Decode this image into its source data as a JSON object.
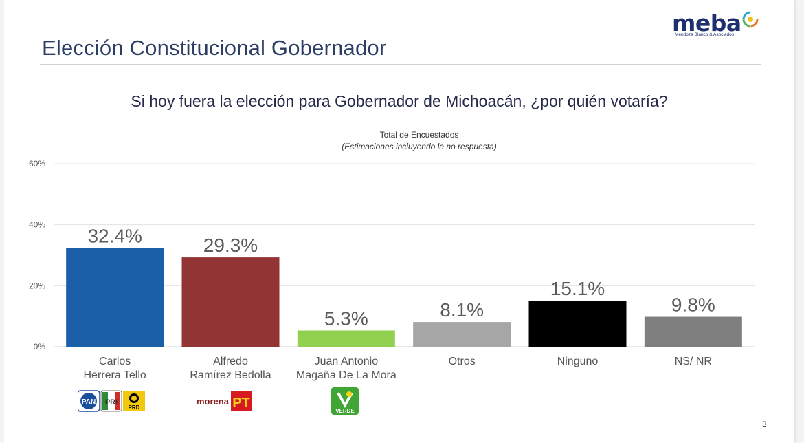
{
  "header": {
    "title": "Elección Constitucional Gobernador",
    "logo_text": "meba",
    "logo_subtext": "Mendoza Blanco & Asociados"
  },
  "question": "Si hoy fuera la elección para Gobernador de Michoacán, ¿por quién votaría?",
  "chart_data": {
    "type": "bar",
    "title": "Total de Encuestados",
    "subtitle": "(Estimaciones incluyendo la no respuesta)",
    "categories": [
      "Carlos\nHerrera Tello",
      "Alfredo\nRamírez Bedolla",
      "Juan Antonio\nMagaña De La Mora",
      "Otros",
      "Ninguno",
      "NS/ NR"
    ],
    "values": [
      32.4,
      29.3,
      5.3,
      8.1,
      15.1,
      9.8
    ],
    "value_labels": [
      "32.4%",
      "29.3%",
      "5.3%",
      "8.1%",
      "15.1%",
      "9.8%"
    ],
    "colors": [
      "#1b5fa8",
      "#933434",
      "#92d050",
      "#a6a6a6",
      "#000000",
      "#7f7f7f"
    ],
    "y_ticks": [
      0,
      20,
      40,
      60
    ],
    "y_tick_labels": [
      "0%",
      "20%",
      "40%",
      "60%"
    ],
    "ylim": [
      0,
      60
    ],
    "grid": true,
    "legend": "none"
  },
  "party_logos": {
    "carlos": [
      "PAN",
      "PRI",
      "PRD"
    ],
    "alfredo": [
      "morena",
      "PT"
    ],
    "juan": [
      "VERDE"
    ]
  },
  "page_number": "3"
}
